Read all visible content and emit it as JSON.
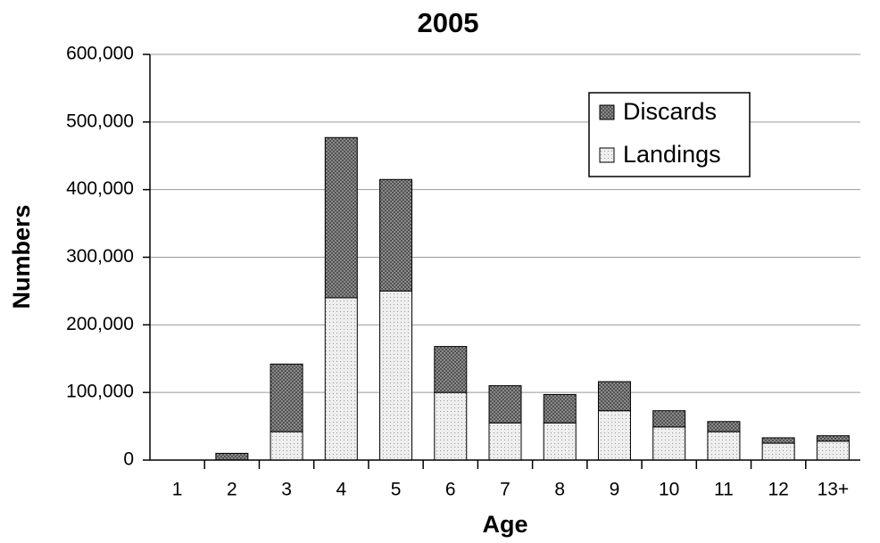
{
  "chart_data": {
    "type": "stacked_bar",
    "title": "2005",
    "x_label": "Age",
    "y_label": "Numbers",
    "categories": [
      "1",
      "2",
      "3",
      "4",
      "5",
      "6",
      "7",
      "8",
      "9",
      "10",
      "11",
      "12",
      "13+"
    ],
    "series": [
      {
        "name": "Landings",
        "color": "#eeeeee",
        "values": [
          0,
          0,
          42000,
          240000,
          250000,
          100000,
          55000,
          55000,
          73000,
          49000,
          42000,
          25000,
          28000
        ]
      },
      {
        "name": "Discards",
        "color": "#999999",
        "values": [
          0,
          10000,
          100000,
          237000,
          165000,
          68000,
          55000,
          42000,
          43000,
          24000,
          15000,
          8000,
          8000
        ]
      }
    ],
    "ylim": [
      0,
      600000
    ],
    "yticks": [
      0,
      {
        "value": 100000,
        "label": "100,000"
      },
      {
        "value": 200000,
        "label": "200,000"
      },
      {
        "value": 300000,
        "label": "300,000"
      },
      {
        "value": 400000,
        "label": "400,000"
      },
      {
        "value": 500000,
        "label": "500,000"
      },
      {
        "value": 600000,
        "label": "600,000"
      }
    ],
    "grid": true,
    "legend": "upper right"
  }
}
